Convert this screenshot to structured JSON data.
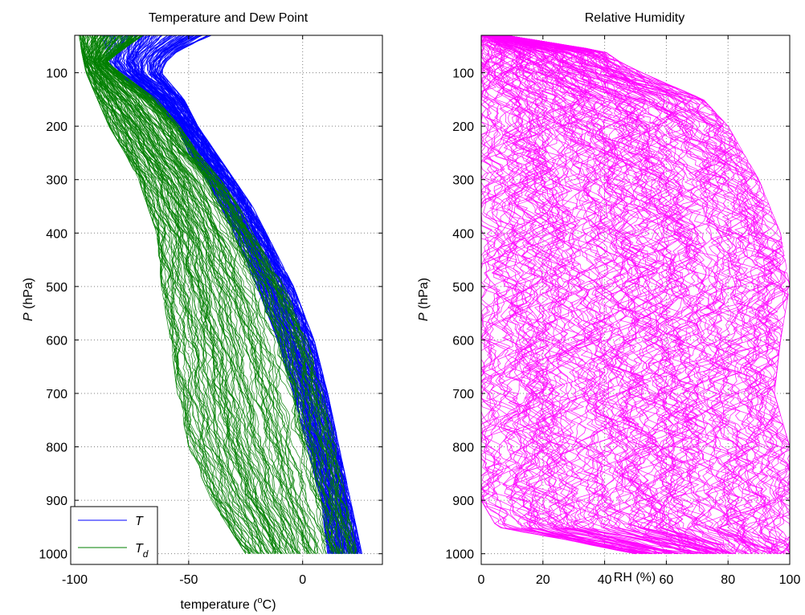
{
  "figure": {
    "background": "#ffffff"
  },
  "chart_data": [
    {
      "type": "line",
      "title": "Temperature and Dew Point",
      "xlabel": "temperature (",
      "xlabel_superscript": "o",
      "xlabel_suffix": "C)",
      "ylabel_italic": "P",
      "ylabel": " (hPa)",
      "xlim": [
        -100,
        35
      ],
      "ylim": [
        1020,
        30
      ],
      "y_reversed": true,
      "grid": true,
      "xticks": [
        -100,
        -50,
        0
      ],
      "xtick_labels": [
        "-100",
        "-50",
        "0"
      ],
      "yticks": [
        100,
        200,
        300,
        400,
        500,
        600,
        700,
        800,
        900,
        1000
      ],
      "ytick_labels": [
        "100",
        "200",
        "300",
        "400",
        "500",
        "600",
        "700",
        "800",
        "900",
        "1000"
      ],
      "legend_position": "bottom-left",
      "legend": [
        {
          "label": "T",
          "subscript": "",
          "color": "#0000ff"
        },
        {
          "label": "T",
          "subscript": "d",
          "color": "#007f00"
        }
      ],
      "series": [
        {
          "name": "T",
          "color": "#0000ff",
          "p": [
            30,
            60,
            80,
            100,
            150,
            200,
            250,
            300,
            350,
            400,
            500,
            600,
            700,
            800,
            900,
            1000
          ],
          "envelope_low": [
            -88,
            -86,
            -86,
            -82,
            -66,
            -55,
            -50,
            -42,
            -36,
            -30,
            -20,
            -11,
            -4,
            2,
            8,
            11
          ],
          "envelope_high": [
            -40,
            -55,
            -60,
            -62,
            -52,
            -46,
            -38,
            -30,
            -22,
            -16,
            -4,
            5,
            11,
            16,
            21,
            26
          ]
        },
        {
          "name": "T_d",
          "color": "#007f00",
          "p": [
            30,
            60,
            80,
            100,
            150,
            200,
            250,
            300,
            350,
            400,
            500,
            600,
            700,
            800,
            900,
            1000
          ],
          "envelope_low": [
            -98,
            -97,
            -96,
            -95,
            -90,
            -85,
            -78,
            -72,
            -68,
            -64,
            -62,
            -58,
            -55,
            -50,
            -40,
            -25
          ],
          "envelope_high": [
            -70,
            -80,
            -86,
            -80,
            -64,
            -54,
            -46,
            -36,
            -28,
            -22,
            -8,
            2,
            9,
            15,
            19,
            24
          ]
        }
      ]
    },
    {
      "type": "line",
      "title": "Relative Humidity",
      "xlabel": "RH (%)",
      "ylabel_italic": "P",
      "ylabel": " (hPa)",
      "xlim": [
        0,
        100
      ],
      "ylim": [
        1020,
        30
      ],
      "y_reversed": true,
      "grid": true,
      "xticks": [
        0,
        20,
        40,
        60,
        80,
        100
      ],
      "xtick_labels": [
        "0",
        "20",
        "40",
        "60",
        "80",
        "100"
      ],
      "yticks": [
        100,
        200,
        300,
        400,
        500,
        600,
        700,
        800,
        900,
        1000
      ],
      "ytick_labels": [
        "100",
        "200",
        "300",
        "400",
        "500",
        "600",
        "700",
        "800",
        "900",
        "1000"
      ],
      "series": [
        {
          "name": "RH",
          "color": "#ff00ff",
          "p": [
            30,
            60,
            80,
            100,
            150,
            200,
            300,
            400,
            500,
            600,
            700,
            800,
            900,
            950,
            1000
          ],
          "envelope_low": [
            0,
            0,
            0,
            0,
            0,
            0,
            0,
            0,
            0,
            0,
            0,
            0,
            0,
            5,
            50
          ],
          "envelope_high": [
            8,
            40,
            45,
            52,
            72,
            80,
            90,
            97,
            100,
            97,
            95,
            100,
            100,
            100,
            100
          ]
        }
      ]
    }
  ]
}
